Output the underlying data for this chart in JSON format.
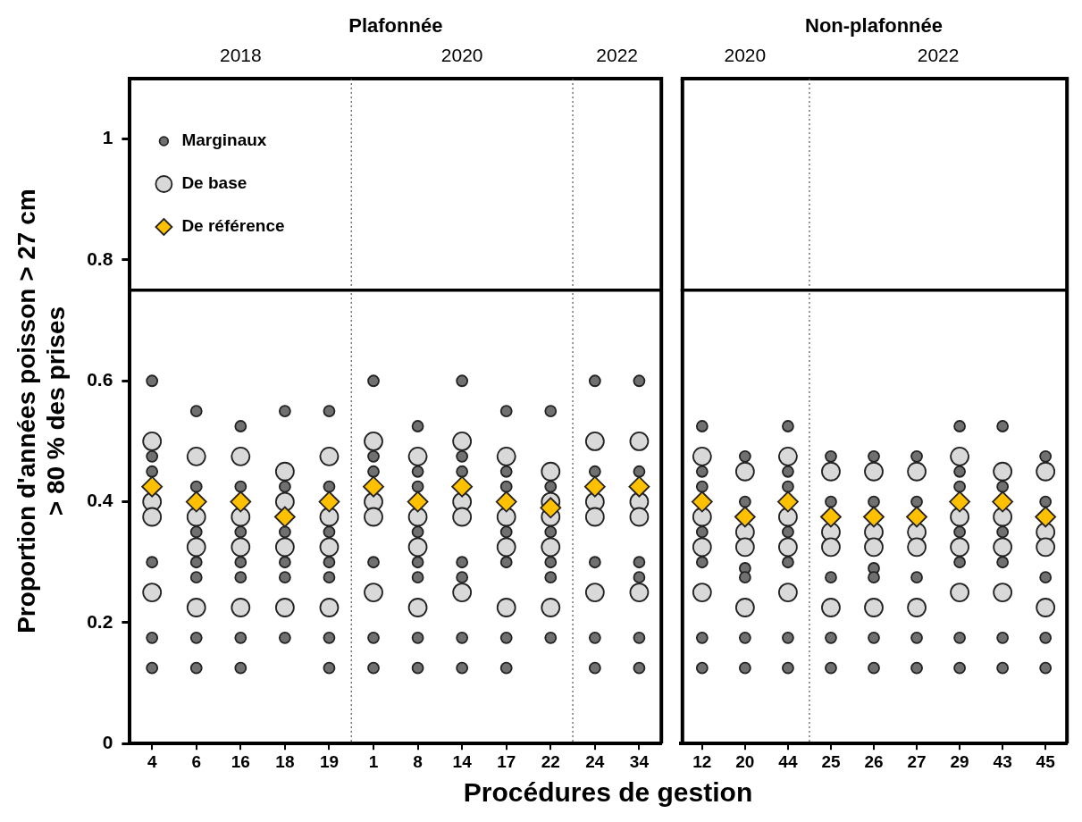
{
  "chart_data": [
    {
      "type": "scatter",
      "title": "Plafonnée",
      "xlabel": "Procédures de gestion",
      "ylabel": "Proportion d'années poisson > 27 cm\n> 80 % des prises",
      "categories": [
        "4",
        "6",
        "16",
        "18",
        "19",
        "1",
        "8",
        "14",
        "17",
        "22",
        "24",
        "34"
      ],
      "ylim": [
        0,
        1.1
      ],
      "yticks": [
        0,
        0.2,
        0.4,
        0.6,
        0.8,
        1
      ],
      "grid": false,
      "legend": "top left",
      "series": [
        {
          "name": "Marginaux",
          "color": "#707070",
          "marker": "circle",
          "x": [
            "4",
            "4",
            "4",
            "4",
            "4",
            "4",
            "6",
            "6",
            "6",
            "6",
            "6",
            "6",
            "6",
            "16",
            "16",
            "16",
            "16",
            "16",
            "16",
            "16",
            "18",
            "18",
            "18",
            "18",
            "18",
            "18",
            "19",
            "19",
            "19",
            "19",
            "19",
            "19",
            "19",
            "1",
            "1",
            "1",
            "1",
            "1",
            "1",
            "8",
            "8",
            "8",
            "8",
            "8",
            "8",
            "8",
            "8",
            "14",
            "14",
            "14",
            "14",
            "14",
            "14",
            "14",
            "17",
            "17",
            "17",
            "17",
            "17",
            "17",
            "17",
            "22",
            "22",
            "22",
            "22",
            "22",
            "22",
            "24",
            "24",
            "24",
            "24",
            "24",
            "34",
            "34",
            "34",
            "34",
            "34",
            "34"
          ],
          "values": [
            0.6,
            0.475,
            0.45,
            0.3,
            0.175,
            0.125,
            0.55,
            0.425,
            0.35,
            0.3,
            0.275,
            0.175,
            0.125,
            0.525,
            0.425,
            0.35,
            0.3,
            0.275,
            0.175,
            0.125,
            0.55,
            0.425,
            0.35,
            0.3,
            0.275,
            0.175,
            0.55,
            0.425,
            0.35,
            0.3,
            0.275,
            0.175,
            0.125,
            0.6,
            0.475,
            0.45,
            0.3,
            0.175,
            0.125,
            0.525,
            0.45,
            0.425,
            0.35,
            0.3,
            0.275,
            0.175,
            0.125,
            0.6,
            0.475,
            0.45,
            0.3,
            0.275,
            0.175,
            0.125,
            0.55,
            0.45,
            0.425,
            0.35,
            0.3,
            0.175,
            0.125,
            0.55,
            0.425,
            0.35,
            0.3,
            0.275,
            0.175,
            0.6,
            0.45,
            0.3,
            0.175,
            0.125,
            0.6,
            0.45,
            0.3,
            0.275,
            0.175,
            0.125
          ]
        },
        {
          "name": "De base",
          "color": "#d9d9d9",
          "marker": "circle",
          "x": [
            "4",
            "4",
            "4",
            "4",
            "6",
            "6",
            "6",
            "6",
            "16",
            "16",
            "16",
            "16",
            "18",
            "18",
            "18",
            "18",
            "19",
            "19",
            "19",
            "19",
            "1",
            "1",
            "1",
            "1",
            "8",
            "8",
            "8",
            "8",
            "14",
            "14",
            "14",
            "14",
            "17",
            "17",
            "17",
            "17",
            "22",
            "22",
            "22",
            "22",
            "22",
            "24",
            "24",
            "24",
            "24",
            "34",
            "34",
            "34",
            "34"
          ],
          "values": [
            0.5,
            0.4,
            0.375,
            0.25,
            0.475,
            0.375,
            0.325,
            0.225,
            0.475,
            0.375,
            0.325,
            0.225,
            0.45,
            0.4,
            0.325,
            0.225,
            0.475,
            0.375,
            0.325,
            0.225,
            0.5,
            0.4,
            0.375,
            0.25,
            0.475,
            0.375,
            0.325,
            0.225,
            0.5,
            0.4,
            0.375,
            0.25,
            0.475,
            0.375,
            0.325,
            0.225,
            0.45,
            0.4,
            0.375,
            0.325,
            0.225,
            0.5,
            0.4,
            0.375,
            0.25,
            0.5,
            0.4,
            0.375,
            0.25
          ]
        },
        {
          "name": "De référence",
          "color": "#ffc000",
          "marker": "diamond",
          "values": [
            0.425,
            0.4,
            0.4,
            0.375,
            0.4,
            0.425,
            0.4,
            0.425,
            0.4,
            0.39,
            0.425,
            0.425
          ]
        }
      ],
      "ref_lines": [
        {
          "axis": "y",
          "value": 0.75,
          "color": "#000000",
          "line_style": "solid"
        }
      ],
      "annotations": [
        "2018",
        "2020",
        "2022"
      ]
    },
    {
      "type": "scatter",
      "title": "Non-plafonnée",
      "categories": [
        "12",
        "20",
        "44",
        "25",
        "26",
        "27",
        "29",
        "43",
        "45"
      ],
      "ylim": [
        0,
        1.1
      ],
      "grid": false,
      "tick_labels": "x",
      "series": [
        {
          "color": "#707070",
          "marker": "circle",
          "x": [
            "12",
            "12",
            "12",
            "12",
            "12",
            "12",
            "12",
            "20",
            "20",
            "20",
            "20",
            "20",
            "20",
            "44",
            "44",
            "44",
            "44",
            "44",
            "44",
            "44",
            "25",
            "25",
            "25",
            "25",
            "25",
            "26",
            "26",
            "26",
            "26",
            "26",
            "26",
            "27",
            "27",
            "27",
            "27",
            "27",
            "29",
            "29",
            "29",
            "29",
            "29",
            "29",
            "29",
            "43",
            "43",
            "43",
            "43",
            "43",
            "43",
            "45",
            "45",
            "45",
            "45",
            "45"
          ],
          "values": [
            0.525,
            0.45,
            0.425,
            0.35,
            0.3,
            0.175,
            0.125,
            0.475,
            0.4,
            0.29,
            0.275,
            0.175,
            0.125,
            0.525,
            0.45,
            0.425,
            0.35,
            0.3,
            0.175,
            0.125,
            0.475,
            0.4,
            0.275,
            0.175,
            0.125,
            0.475,
            0.4,
            0.29,
            0.275,
            0.175,
            0.125,
            0.475,
            0.4,
            0.275,
            0.175,
            0.125,
            0.525,
            0.45,
            0.425,
            0.35,
            0.3,
            0.175,
            0.125,
            0.525,
            0.425,
            0.35,
            0.3,
            0.175,
            0.125,
            0.475,
            0.4,
            0.275,
            0.175,
            0.125
          ]
        },
        {
          "color": "#d9d9d9",
          "marker": "circle",
          "x": [
            "12",
            "12",
            "12",
            "12",
            "20",
            "20",
            "20",
            "20",
            "44",
            "44",
            "44",
            "44",
            "25",
            "25",
            "25",
            "25",
            "26",
            "26",
            "26",
            "26",
            "27",
            "27",
            "27",
            "27",
            "29",
            "29",
            "29",
            "29",
            "43",
            "43",
            "43",
            "43",
            "45",
            "45",
            "45",
            "45"
          ],
          "values": [
            0.475,
            0.375,
            0.325,
            0.25,
            0.45,
            0.35,
            0.325,
            0.225,
            0.475,
            0.375,
            0.325,
            0.25,
            0.45,
            0.35,
            0.325,
            0.225,
            0.45,
            0.35,
            0.325,
            0.225,
            0.45,
            0.35,
            0.325,
            0.225,
            0.475,
            0.375,
            0.325,
            0.25,
            0.45,
            0.375,
            0.325,
            0.25,
            0.45,
            0.35,
            0.325,
            0.225
          ]
        },
        {
          "color": "#ffc000",
          "marker": "diamond",
          "values": [
            0.4,
            0.375,
            0.4,
            0.375,
            0.375,
            0.375,
            0.4,
            0.4,
            0.375
          ]
        }
      ],
      "ref_lines": [
        {
          "axis": "y",
          "value": 0.75,
          "color": "#000000",
          "line_style": "solid"
        }
      ],
      "annotations": [
        "2020",
        "2022"
      ]
    }
  ]
}
